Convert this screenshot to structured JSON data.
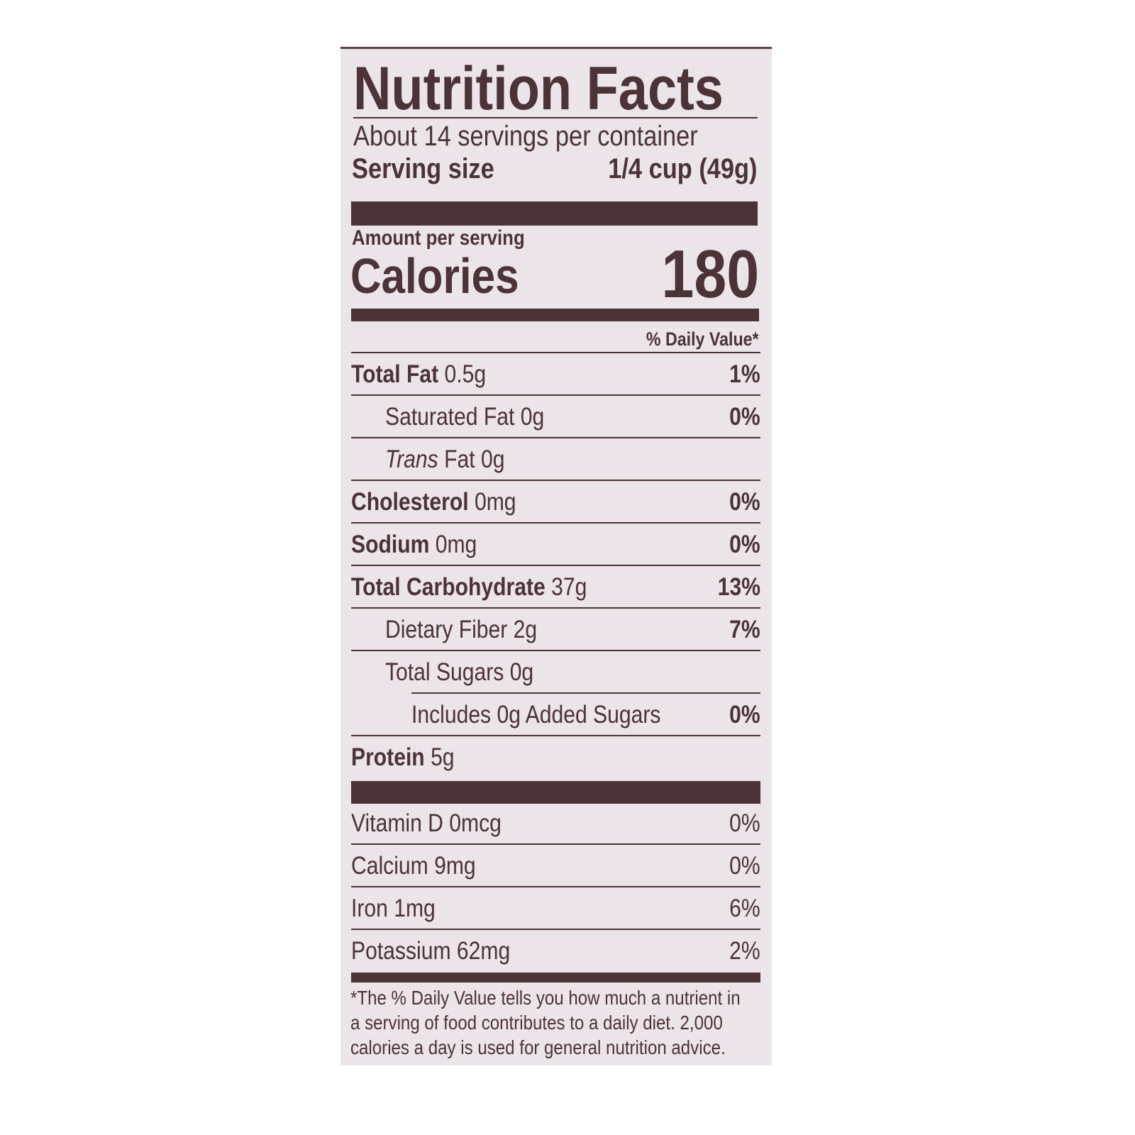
{
  "title": "Nutrition Facts",
  "servings_per_container": "About 14 servings per container",
  "serving_size_label": "Serving size",
  "serving_size_value": "1/4 cup (49g)",
  "amount_per_serving": "Amount per serving",
  "calories_label": "Calories",
  "calories_value": "180",
  "daily_value_header": "% Daily Value*",
  "nutrients": [
    {
      "name": "Total Fat",
      "amount": "0.5g",
      "dv": "1%"
    },
    {
      "name": "Saturated Fat",
      "amount": "0g",
      "dv": "0%"
    },
    {
      "name": "Trans",
      "name_suffix": "Fat",
      "amount": "0g",
      "dv": ""
    },
    {
      "name": "Cholesterol",
      "amount": "0mg",
      "dv": "0%"
    },
    {
      "name": "Sodium",
      "amount": "0mg",
      "dv": "0%"
    },
    {
      "name": "Total Carbohydrate",
      "amount": "37g",
      "dv": "13%"
    },
    {
      "name": "Dietary Fiber",
      "amount": "2g",
      "dv": "7%"
    },
    {
      "name": "Total Sugars",
      "amount": "0g",
      "dv": ""
    },
    {
      "name": "Includes 0g Added Sugars",
      "amount": "",
      "dv": "0%"
    },
    {
      "name": "Protein",
      "amount": "5g",
      "dv": ""
    }
  ],
  "minerals": [
    {
      "name": "Vitamin D",
      "amount": "0mcg",
      "dv": "0%"
    },
    {
      "name": "Calcium",
      "amount": "9mg",
      "dv": "0%"
    },
    {
      "name": "Iron",
      "amount": "1mg",
      "dv": "6%"
    },
    {
      "name": "Potassium",
      "amount": "62mg",
      "dv": "2%"
    }
  ],
  "footnote": [
    "*The % Daily Value tells you how much a nutrient in",
    "a serving of food contributes to a daily diet. 2,000",
    "calories a day is used for general nutrition advice."
  ],
  "colors": {
    "ink": "#4b3337",
    "label_bg": "#ebe4e9"
  }
}
